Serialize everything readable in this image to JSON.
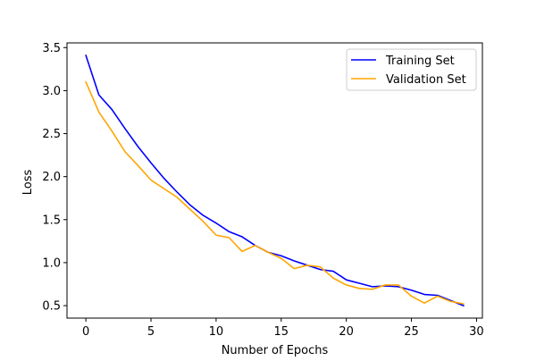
{
  "chart_data": {
    "type": "line",
    "title": "",
    "xlabel": "Number of Epochs",
    "ylabel": "Loss",
    "xlim": [
      -1.45,
      30.45
    ],
    "ylim": [
      0.355,
      3.555
    ],
    "x_ticks": [
      0,
      5,
      10,
      15,
      20,
      25,
      30
    ],
    "y_ticks": [
      0.5,
      1.0,
      1.5,
      2.0,
      2.5,
      3.0,
      3.5
    ],
    "x_tick_labels": [
      "0",
      "5",
      "10",
      "15",
      "20",
      "25",
      "30"
    ],
    "y_tick_labels": [
      "0.5",
      "1.0",
      "1.5",
      "2.0",
      "2.5",
      "3.0",
      "3.5"
    ],
    "grid": false,
    "legend_position": "upper right",
    "x": [
      0,
      1,
      2,
      3,
      4,
      5,
      6,
      7,
      8,
      9,
      10,
      11,
      12,
      13,
      14,
      15,
      16,
      17,
      18,
      19,
      20,
      21,
      22,
      23,
      24,
      25,
      26,
      27,
      28,
      29
    ],
    "series": [
      {
        "name": "Training Set",
        "color": "#0000ff",
        "values": [
          3.41,
          2.95,
          2.78,
          2.56,
          2.35,
          2.16,
          1.98,
          1.82,
          1.67,
          1.55,
          1.46,
          1.36,
          1.3,
          1.2,
          1.12,
          1.08,
          1.02,
          0.97,
          0.92,
          0.9,
          0.8,
          0.76,
          0.72,
          0.73,
          0.72,
          0.68,
          0.63,
          0.62,
          0.56,
          0.5
        ]
      },
      {
        "name": "Validation Set",
        "color": "#ffa500",
        "values": [
          3.1,
          2.75,
          2.53,
          2.29,
          2.13,
          1.96,
          1.86,
          1.76,
          1.62,
          1.48,
          1.32,
          1.29,
          1.13,
          1.2,
          1.12,
          1.05,
          0.93,
          0.97,
          0.95,
          0.82,
          0.74,
          0.7,
          0.69,
          0.74,
          0.74,
          0.61,
          0.53,
          0.61,
          0.55,
          0.52
        ]
      }
    ]
  }
}
